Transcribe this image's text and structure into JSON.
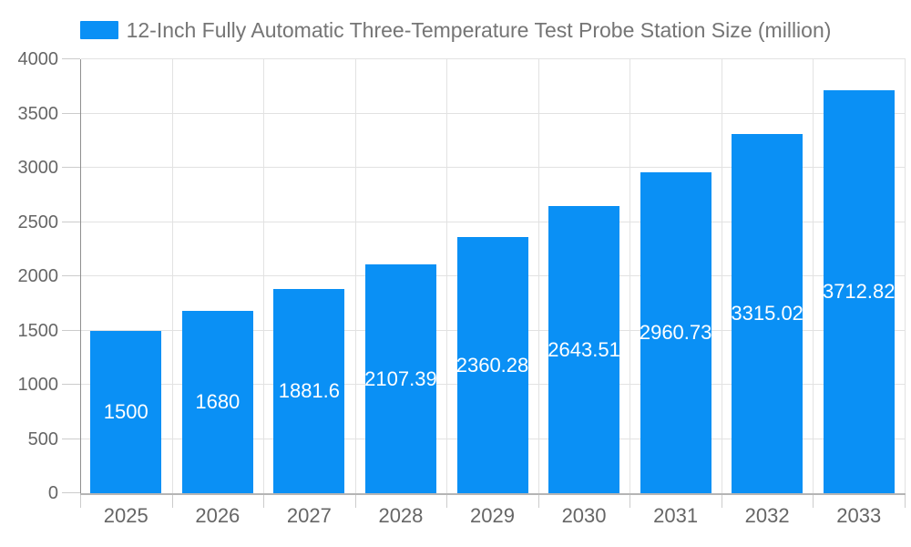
{
  "chart_data": {
    "type": "bar",
    "title": "12-Inch Fully Automatic Three-Temperature Test Probe Station Size (million)",
    "categories": [
      "2025",
      "2026",
      "2027",
      "2028",
      "2029",
      "2030",
      "2031",
      "2032",
      "2033"
    ],
    "values": [
      1500,
      1680,
      1881.6,
      2107.39,
      2360.28,
      2643.51,
      2960.73,
      3315.02,
      3712.82
    ],
    "value_labels": [
      "1500",
      "1680",
      "1881.6",
      "2107.39",
      "2360.28",
      "2643.51",
      "2960.73",
      "3315.02",
      "3712.82"
    ],
    "xlabel": "",
    "ylabel": "",
    "ylim": [
      0,
      4000
    ],
    "yticks": [
      0,
      500,
      1000,
      1500,
      2000,
      2500,
      3000,
      3500,
      4000
    ],
    "grid": "horizontal-and-vertical",
    "legend_position": "top-center",
    "bar_color": "#0a90f5",
    "value_label_color": "#ffffff",
    "axis_label_color": "#666666",
    "legend_text_color": "#757575",
    "grid_color": "#e2e2e2"
  }
}
